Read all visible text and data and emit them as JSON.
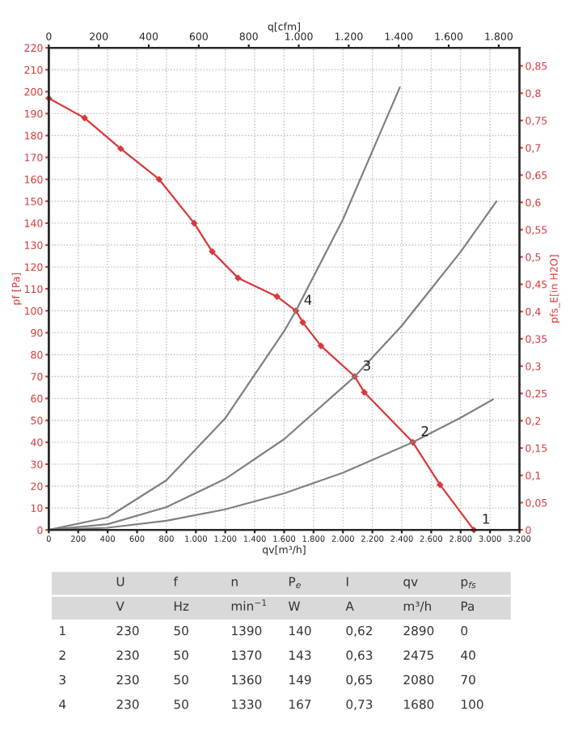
{
  "chart_data": {
    "type": "line",
    "xlabel": "qv[m³/h]",
    "ylabel": "pf [Pa]",
    "y2label": "pfs_E[in H2O]",
    "x2label": "q[cfm]",
    "series": [
      {
        "color": "#d9383a",
        "marker": "diamond",
        "x": [
          0,
          243,
          489,
          750,
          988,
          1111,
          1287,
          1552,
          1680,
          1727,
          1850,
          2080,
          2145,
          2475,
          2660,
          2890
        ],
        "values": [
          197,
          188,
          174,
          160,
          140,
          127,
          115,
          106.5,
          100,
          94.7,
          84,
          70,
          62.8,
          40,
          20.6,
          0
        ]
      },
      {
        "color": "#808080",
        "marker": "none",
        "x": [
          0,
          400,
          800,
          1200,
          1600,
          1680,
          2000,
          2387
        ],
        "values": [
          0,
          5.7,
          22.7,
          51,
          90.7,
          100,
          141.7,
          202
        ]
      },
      {
        "color": "#808080",
        "marker": "none",
        "x": [
          0,
          400,
          800,
          1200,
          1600,
          2080,
          2400,
          2800,
          3044
        ],
        "values": [
          0,
          2.6,
          10.4,
          23.3,
          41.4,
          70,
          93.2,
          126.9,
          150
        ]
      },
      {
        "color": "#808080",
        "marker": "none",
        "x": [
          0,
          400,
          800,
          1200,
          1600,
          2000,
          2475,
          2800,
          3021
        ],
        "values": [
          0,
          1.0,
          4.2,
          9.4,
          16.7,
          26.1,
          40,
          51.2,
          59.6
        ]
      }
    ],
    "xlim": [
      0,
      3200
    ],
    "xticks": [
      0,
      200,
      400,
      600,
      800,
      {
        "value": 1000,
        "label": "1.000"
      },
      {
        "value": 1200,
        "label": "1.200"
      },
      {
        "value": 1400,
        "label": "1.400"
      },
      {
        "value": 1600,
        "label": "1.600"
      },
      {
        "value": 1800,
        "label": "1.800"
      },
      {
        "value": 2000,
        "label": "2.000"
      },
      {
        "value": 2200,
        "label": "2.200"
      },
      {
        "value": 2400,
        "label": "2.400"
      },
      {
        "value": 2600,
        "label": "2.600"
      },
      {
        "value": 2800,
        "label": "2.800"
      },
      {
        "value": 3000,
        "label": "3.000"
      },
      {
        "value": 3200,
        "label": "3.200"
      }
    ],
    "x2lim": [
      0,
      1883
    ],
    "x2ticks": [
      0,
      200,
      400,
      600,
      800,
      {
        "value": 1000,
        "label": "1.000"
      },
      {
        "value": 1200,
        "label": "1.200"
      },
      {
        "value": 1400,
        "label": "1.400"
      },
      {
        "value": 1600,
        "label": "1.600"
      },
      {
        "value": 1800,
        "label": "1.800"
      }
    ],
    "ylim": [
      0,
      220
    ],
    "yticks": [
      0,
      10,
      20,
      30,
      40,
      50,
      60,
      70,
      80,
      90,
      100,
      110,
      120,
      130,
      140,
      150,
      160,
      170,
      180,
      190,
      200,
      210,
      220
    ],
    "y2lim": [
      0,
      0.883
    ],
    "y2ticks": [
      0,
      {
        "value": 0.05,
        "label": "0,05"
      },
      {
        "value": 0.1,
        "label": "0,1"
      },
      {
        "value": 0.15,
        "label": "0,15"
      },
      {
        "value": 0.2,
        "label": "0,2"
      },
      {
        "value": 0.25,
        "label": "0,25"
      },
      {
        "value": 0.3,
        "label": "0,3"
      },
      {
        "value": 0.35,
        "label": "0,35"
      },
      {
        "value": 0.4,
        "label": "0,4"
      },
      {
        "value": 0.45,
        "label": "0,45"
      },
      {
        "value": 0.5,
        "label": "0,5"
      },
      {
        "value": 0.55,
        "label": "0,55"
      },
      {
        "value": 0.6,
        "label": "0,6"
      },
      {
        "value": 0.65,
        "label": "0,65"
      },
      {
        "value": 0.7,
        "label": "0,7"
      },
      {
        "value": 0.75,
        "label": "0,75"
      },
      {
        "value": 0.8,
        "label": "0,8"
      },
      {
        "value": 0.85,
        "label": "0,85"
      }
    ],
    "grid": true,
    "annotations": [
      {
        "text": "1",
        "x": 2890,
        "y": 0
      },
      {
        "text": "2",
        "x": 2475,
        "y": 40
      },
      {
        "text": "3",
        "x": 2080,
        "y": 70
      },
      {
        "text": "4",
        "x": 1680,
        "y": 100
      },
      "\tU\tf\tn\tP$_{e}$\tI\tqv\tp$_{fs}$",
      "\tV\tHz\tmin$^{−1}$\tW\tA\tm³/h\tPa",
      "1\t230\t50\t1390\t140\t0,62\t2890\t0",
      "2\t230\t50\t1370\t143\t0,63\t2475\t40",
      "3\t230\t50\t1360\t149\t0,65\t2080\t70",
      "4\t230\t50\t1330\t167\t0,73\t1680\t100"
    ]
  }
}
